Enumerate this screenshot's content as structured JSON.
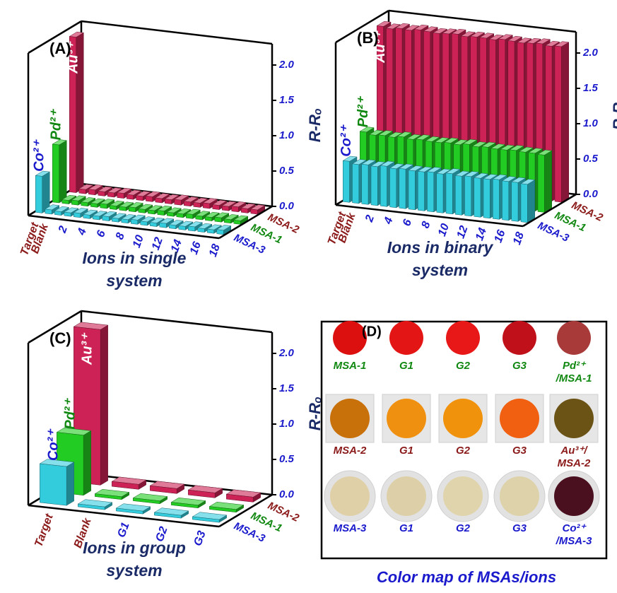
{
  "chart_data": [
    {
      "type": "bar3d",
      "panel": "(A)",
      "xlabel": [
        "Ions in single",
        "system"
      ],
      "ylabel": "R-Rₒ",
      "categories": [
        "Target",
        "Blank",
        null,
        "2",
        null,
        "4",
        null,
        "6",
        null,
        "8",
        null,
        "10",
        null,
        "12",
        null,
        "14",
        null,
        "16",
        null,
        "18"
      ],
      "ylim": [
        0,
        2.3
      ],
      "yticks": [
        {
          "value": 0,
          "label": "0.0"
        },
        {
          "value": 0.5,
          "label": "0.5"
        },
        {
          "value": 1,
          "label": "1.0"
        },
        {
          "value": 1.5,
          "label": "1.5"
        },
        {
          "value": 2,
          "label": "2.0"
        }
      ],
      "series": [
        {
          "name": "MSA-3",
          "color": "#33ccdd",
          "label_color": "#1a1acc",
          "annotation": {
            "text": "Co²⁺",
            "color": "#1a1acc",
            "placement": "above"
          },
          "values": [
            0.52,
            0.06,
            0.05,
            0.05,
            0.06,
            0.05,
            0.05,
            0.06,
            0.05,
            0.05,
            0.06,
            0.05,
            0.05,
            0.06,
            0.05,
            0.05,
            0.06,
            0.05,
            0.05,
            0.06
          ]
        },
        {
          "name": "MSA-1",
          "color": "#22cc22",
          "label_color": "#118811",
          "annotation": {
            "text": "Pd²⁺",
            "color": "#118811",
            "placement": "above"
          },
          "values": [
            0.82,
            0.05,
            0.06,
            0.05,
            0.05,
            0.06,
            0.05,
            0.05,
            0.06,
            0.05,
            0.05,
            0.06,
            0.05,
            0.05,
            0.06,
            0.05,
            0.05,
            0.06,
            0.05,
            0.05
          ]
        },
        {
          "name": "MSA-2",
          "color": "#cc2255",
          "label_color": "#8b1a1a",
          "annotation": {
            "text": "Au³⁺",
            "color": "#ffffff",
            "placement": "inside"
          },
          "values": [
            2.2,
            0.06,
            0.07,
            0.06,
            0.06,
            0.07,
            0.06,
            0.06,
            0.07,
            0.06,
            0.06,
            0.07,
            0.06,
            0.06,
            0.07,
            0.06,
            0.06,
            0.07,
            0.06,
            0.06
          ]
        }
      ]
    },
    {
      "type": "bar3d",
      "panel": "(B)",
      "xlabel": [
        "Ions in binary",
        "system"
      ],
      "ylabel": "R-Rₒ",
      "categories": [
        "Target",
        "Blank",
        null,
        "2",
        null,
        "4",
        null,
        "6",
        null,
        "8",
        null,
        "10",
        null,
        "12",
        null,
        "14",
        null,
        "16",
        null,
        "18"
      ],
      "ylim": [
        0,
        2.3
      ],
      "yticks": [
        {
          "value": 0,
          "label": "0.0"
        },
        {
          "value": 0.5,
          "label": "0.5"
        },
        {
          "value": 1,
          "label": "1.0"
        },
        {
          "value": 1.5,
          "label": "1.5"
        },
        {
          "value": 2,
          "label": "2.0"
        }
      ],
      "series": [
        {
          "name": "MSA-3",
          "color": "#33ccdd",
          "label_color": "#1a1acc",
          "annotation": {
            "text": "Co²⁺",
            "color": "#1a1acc",
            "placement": "above"
          },
          "values": [
            0.58,
            0.55,
            0.56,
            0.55,
            0.57,
            0.55,
            0.56,
            0.55,
            0.55,
            0.56,
            0.55,
            0.57,
            0.55,
            0.56,
            0.55,
            0.55,
            0.56,
            0.55,
            0.55,
            0.54
          ]
        },
        {
          "name": "MSA-1",
          "color": "#22cc22",
          "label_color": "#118811",
          "annotation": {
            "text": "Pd²⁺",
            "color": "#118811",
            "placement": "above"
          },
          "values": [
            0.85,
            0.82,
            0.83,
            0.82,
            0.84,
            0.82,
            0.83,
            0.82,
            0.82,
            0.83,
            0.82,
            0.84,
            0.82,
            0.83,
            0.82,
            0.82,
            0.83,
            0.82,
            0.82,
            0.81
          ]
        },
        {
          "name": "MSA-2",
          "color": "#cc2255",
          "label_color": "#8b1a1a",
          "annotation": {
            "text": "Au³⁺",
            "color": "#ffffff",
            "placement": "inside"
          },
          "values": [
            2.2,
            2.18,
            2.2,
            2.19,
            2.21,
            2.2,
            2.19,
            2.2,
            2.21,
            2.19,
            2.2,
            2.2,
            2.19,
            2.21,
            2.2,
            2.19,
            2.2,
            2.21,
            2.19,
            2.2
          ]
        }
      ]
    },
    {
      "type": "bar3d",
      "panel": "(C)",
      "xlabel": [
        "Ions in group",
        "system"
      ],
      "ylabel": "R-Rₒ",
      "categories": [
        "Target",
        "Blank",
        "G1",
        "G2",
        "G3"
      ],
      "ylim": [
        0,
        2.3
      ],
      "yticks": [
        {
          "value": 0,
          "label": "0.0"
        },
        {
          "value": 0.5,
          "label": "0.5"
        },
        {
          "value": 1,
          "label": "1.0"
        },
        {
          "value": 1.5,
          "label": "1.5"
        },
        {
          "value": 2,
          "label": "2.0"
        }
      ],
      "series": [
        {
          "name": "MSA-3",
          "color": "#33ccdd",
          "label_color": "#1a1acc",
          "annotation": {
            "text": "Co²⁺",
            "color": "#1a1acc",
            "placement": "above"
          },
          "values": [
            0.55,
            0.04,
            0.04,
            0.04,
            0.04
          ]
        },
        {
          "name": "MSA-1",
          "color": "#22cc22",
          "label_color": "#118811",
          "annotation": {
            "text": "Pd²⁺",
            "color": "#118811",
            "placement": "above"
          },
          "values": [
            0.85,
            0.04,
            0.04,
            0.04,
            0.04
          ]
        },
        {
          "name": "MSA-2",
          "color": "#cc2255",
          "label_color": "#8b1a1a",
          "annotation": {
            "text": "Au³⁺",
            "color": "#ffffff",
            "placement": "inside"
          },
          "values": [
            2.2,
            0.07,
            0.07,
            0.07,
            0.07
          ]
        }
      ]
    }
  ],
  "color_map": {
    "panel": "(D)",
    "title": "Color map of MSAs/ions",
    "rows": [
      {
        "label_color": "#118811",
        "frame": "none",
        "cells": [
          {
            "color": "#dd1010",
            "label": [
              "MSA-1"
            ]
          },
          {
            "color": "#e41515",
            "label": [
              "G1"
            ]
          },
          {
            "color": "#e81818",
            "label": [
              "G2"
            ]
          },
          {
            "color": "#c0101a",
            "label": [
              "G3"
            ]
          },
          {
            "color": "#a83a3a",
            "label": [
              "Pd²⁺",
              "/MSA-1"
            ]
          }
        ]
      },
      {
        "label_color": "#8b1a1a",
        "frame": "square",
        "cells": [
          {
            "color": "#c8700a",
            "label": [
              "MSA-2"
            ]
          },
          {
            "color": "#f09010",
            "label": [
              "G1"
            ]
          },
          {
            "color": "#f0920c",
            "label": [
              "G2"
            ]
          },
          {
            "color": "#f06010",
            "label": [
              "G3"
            ]
          },
          {
            "color": "#6b5215",
            "label": [
              "Au³⁺/",
              "MSA-2"
            ]
          }
        ]
      },
      {
        "label_color": "#1a1acc",
        "frame": "circle",
        "cells": [
          {
            "color": "#e0d0a8",
            "label": [
              "MSA-3"
            ]
          },
          {
            "color": "#ddd0a8",
            "label": [
              "G1"
            ]
          },
          {
            "color": "#e0d4ac",
            "label": [
              "G2"
            ]
          },
          {
            "color": "#ddd2aa",
            "label": [
              "G3"
            ]
          },
          {
            "color": "#4a1020",
            "label": [
              "Co²⁺",
              "/MSA-3"
            ]
          }
        ]
      }
    ]
  }
}
